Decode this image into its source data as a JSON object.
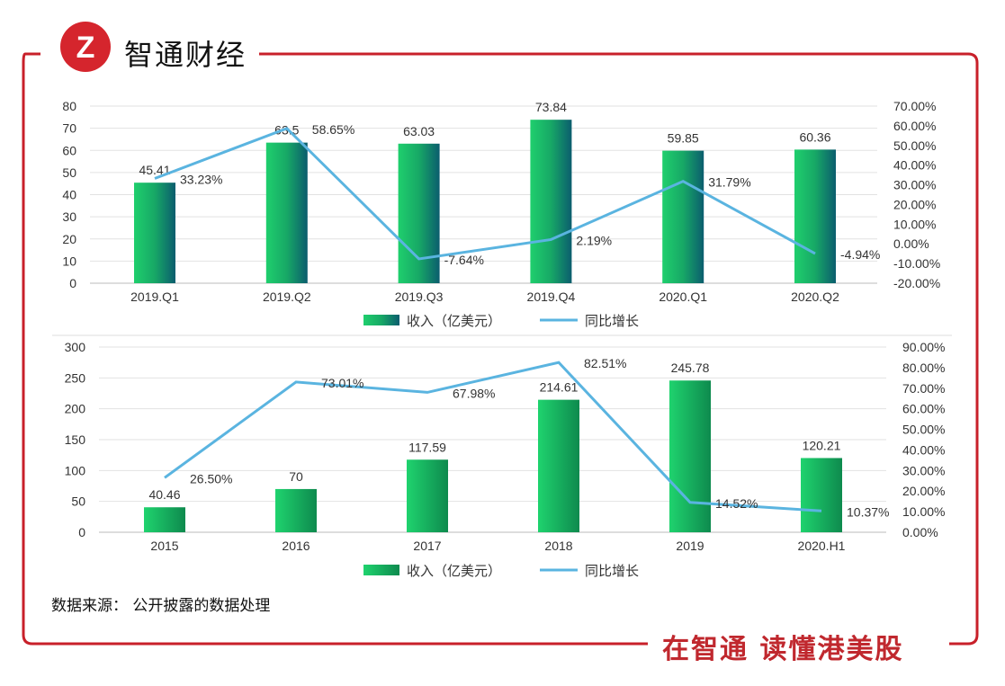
{
  "brand": {
    "name": "智通财经",
    "slogan": "在智通 读懂港美股",
    "logo_letter": "Z"
  },
  "source": "数据来源： 公开披露的数据处理",
  "colors": {
    "frame": "#c8202a",
    "bar_start": "#1fcf6d",
    "bar_end": "#0b5d6e",
    "line": "#5ab4e0"
  },
  "chart_data": [
    {
      "type": "bar+line",
      "title": "",
      "categories": [
        "2019.Q1",
        "2019.Q2",
        "2019.Q3",
        "2019.Q4",
        "2020.Q1",
        "2020.Q2"
      ],
      "series": [
        {
          "name": "收入（亿美元）",
          "type": "bar",
          "axis": "left",
          "values": [
            45.41,
            63.5,
            63.03,
            73.84,
            59.85,
            60.36
          ],
          "labels": [
            "45.41",
            "63.5",
            "63.03",
            "73.84",
            "59.85",
            "60.36"
          ]
        },
        {
          "name": "同比增长",
          "type": "line",
          "axis": "right",
          "values": [
            33.23,
            58.65,
            -7.64,
            2.19,
            31.79,
            -4.94
          ],
          "labels": [
            "33.23%",
            "58.65%",
            "-7.64%",
            "2.19%",
            "31.79%",
            "-4.94%"
          ]
        }
      ],
      "ylim": [
        0,
        80
      ],
      "yticks": [
        "0",
        "10",
        "20",
        "30",
        "40",
        "50",
        "60",
        "70",
        "80"
      ],
      "y2lim": [
        -20,
        70
      ],
      "y2ticks": [
        "-20.00%",
        "-10.00%",
        "0.00%",
        "10.00%",
        "20.00%",
        "30.00%",
        "40.00%",
        "50.00%",
        "60.00%",
        "70.00%"
      ],
      "grid": true,
      "legend": "bottom"
    },
    {
      "type": "bar+line",
      "title": "",
      "categories": [
        "2015",
        "2016",
        "2017",
        "2018",
        "2019",
        "2020.H1"
      ],
      "series": [
        {
          "name": "收入（亿美元）",
          "type": "bar",
          "axis": "left",
          "values": [
            40.46,
            70,
            117.59,
            214.61,
            245.78,
            120.21
          ],
          "labels": [
            "40.46",
            "70",
            "117.59",
            "214.61",
            "245.78",
            "120.21"
          ]
        },
        {
          "name": "同比增长",
          "type": "line",
          "axis": "right",
          "values": [
            26.5,
            73.01,
            67.98,
            82.51,
            14.52,
            10.37
          ],
          "labels": [
            "26.50%",
            "73.01%",
            "67.98%",
            "82.51%",
            "14.52%",
            "10.37%"
          ]
        }
      ],
      "ylim": [
        0,
        300
      ],
      "yticks": [
        "0",
        "50",
        "100",
        "150",
        "200",
        "250",
        "300"
      ],
      "y2lim": [
        0,
        90
      ],
      "y2ticks": [
        "0.00%",
        "10.00%",
        "20.00%",
        "30.00%",
        "40.00%",
        "50.00%",
        "60.00%",
        "70.00%",
        "80.00%",
        "90.00%"
      ],
      "grid": true,
      "legend": "bottom"
    }
  ]
}
